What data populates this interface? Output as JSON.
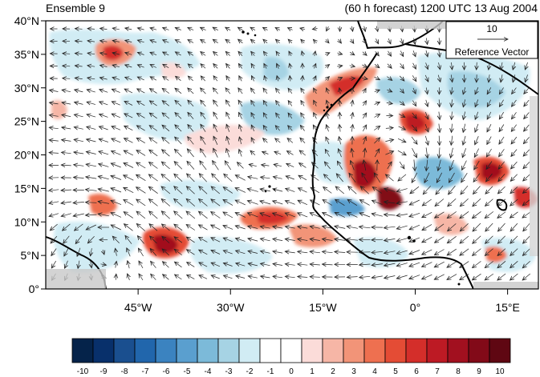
{
  "header": {
    "left_title": "Ensemble 9",
    "right_title": "(60 h forecast) 1200 UTC 13 Aug 2004"
  },
  "axes": {
    "y_ticks": [
      "40°N",
      "35°N",
      "30°N",
      "25°N",
      "20°N",
      "15°N",
      "10°N",
      "5°N",
      "0°"
    ],
    "x_ticks": [
      "45°W",
      "30°W",
      "15°W",
      "0°",
      "15°E"
    ],
    "lon_range": [
      -60,
      20
    ],
    "lat_range": [
      0,
      40
    ]
  },
  "reference_vector": {
    "magnitude": "10",
    "label": "Reference Vector"
  },
  "colorbar": {
    "labels": [
      "-10",
      "-9",
      "-8",
      "-7",
      "-6",
      "-5",
      "-4",
      "-3",
      "-2",
      "-1",
      "0",
      "1",
      "2",
      "3",
      "4",
      "5",
      "6",
      "7",
      "8",
      "9",
      "10"
    ],
    "colors": [
      "#05234a",
      "#08306b",
      "#1a4f8f",
      "#2166ac",
      "#3b83c0",
      "#5a9fcf",
      "#7cbad9",
      "#a6d3e4",
      "#d1ecf4",
      "#ffffff",
      "#ffffff",
      "#fbdcd9",
      "#f6b6a6",
      "#f29478",
      "#ee7050",
      "#e44c35",
      "#d42e2a",
      "#bd1a24",
      "#a2101f",
      "#820a18",
      "#5f0712"
    ]
  }
}
